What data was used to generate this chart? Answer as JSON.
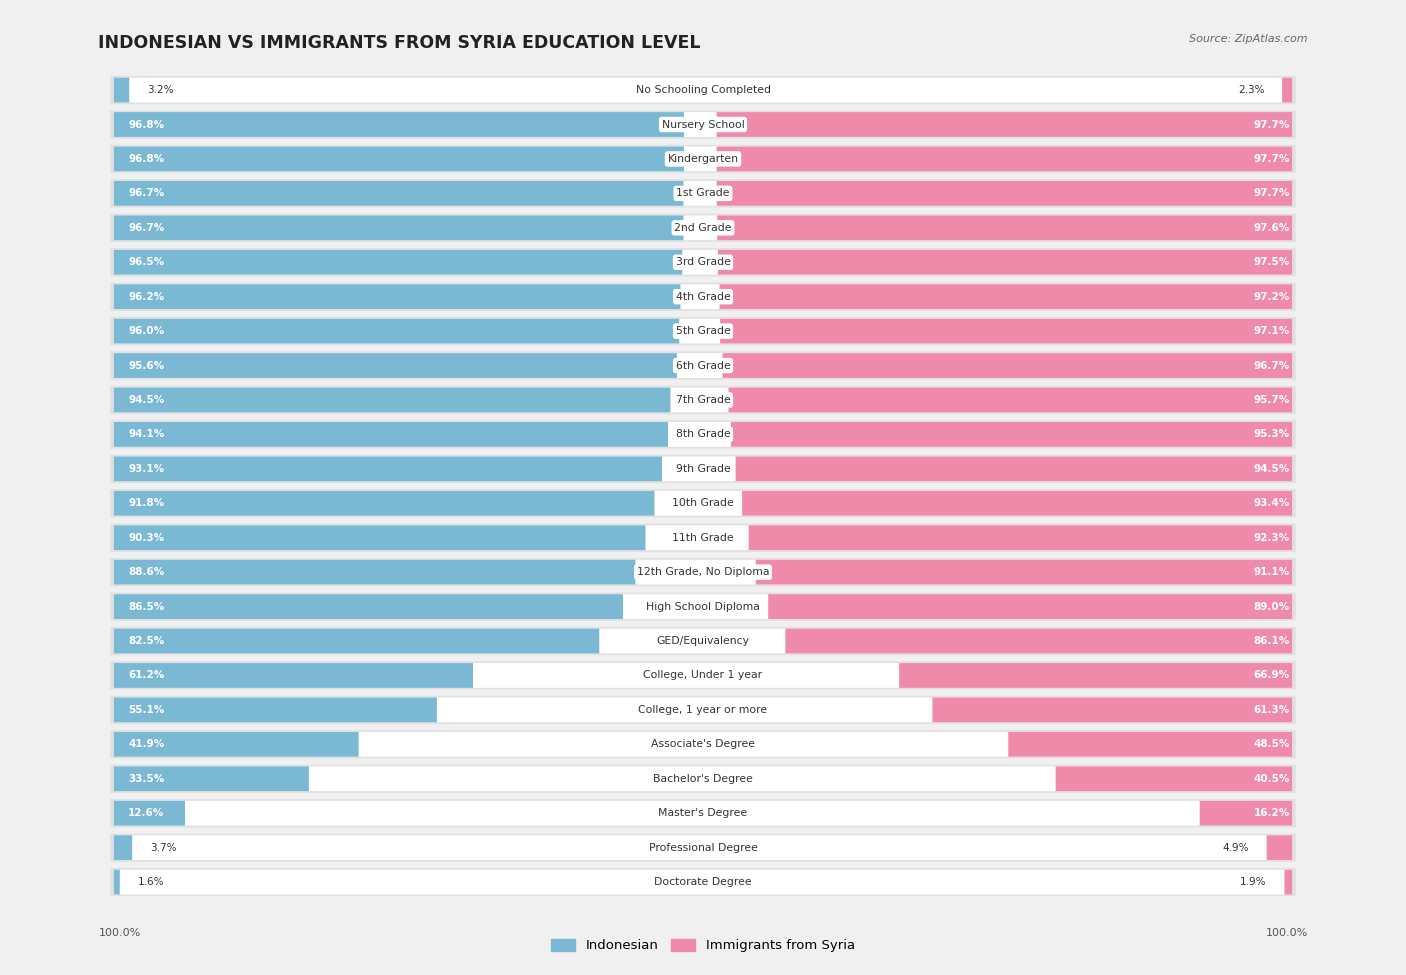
{
  "title": "INDONESIAN VS IMMIGRANTS FROM SYRIA EDUCATION LEVEL",
  "source": "Source: ZipAtlas.com",
  "categories": [
    "No Schooling Completed",
    "Nursery School",
    "Kindergarten",
    "1st Grade",
    "2nd Grade",
    "3rd Grade",
    "4th Grade",
    "5th Grade",
    "6th Grade",
    "7th Grade",
    "8th Grade",
    "9th Grade",
    "10th Grade",
    "11th Grade",
    "12th Grade, No Diploma",
    "High School Diploma",
    "GED/Equivalency",
    "College, Under 1 year",
    "College, 1 year or more",
    "Associate's Degree",
    "Bachelor's Degree",
    "Master's Degree",
    "Professional Degree",
    "Doctorate Degree"
  ],
  "indonesian": [
    3.2,
    96.8,
    96.8,
    96.7,
    96.7,
    96.5,
    96.2,
    96.0,
    95.6,
    94.5,
    94.1,
    93.1,
    91.8,
    90.3,
    88.6,
    86.5,
    82.5,
    61.2,
    55.1,
    41.9,
    33.5,
    12.6,
    3.7,
    1.6
  ],
  "syria": [
    2.3,
    97.7,
    97.7,
    97.7,
    97.6,
    97.5,
    97.2,
    97.1,
    96.7,
    95.7,
    95.3,
    94.5,
    93.4,
    92.3,
    91.1,
    89.0,
    86.1,
    66.9,
    61.3,
    48.5,
    40.5,
    16.2,
    4.9,
    1.9
  ],
  "color_indonesian": "#7ab8d4",
  "color_syria": "#f08aaa",
  "row_color_odd": "#e8e8e8",
  "row_color_even": "#e8e8e8",
  "bar_bg_color": "#ffffff",
  "legend_indonesian": "Indonesian",
  "legend_syria": "Immigrants from Syria"
}
